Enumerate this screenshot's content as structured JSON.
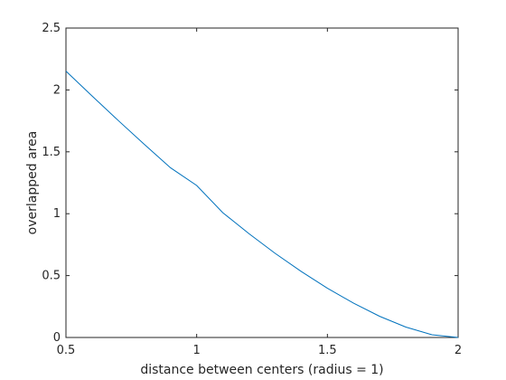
{
  "chart_data": {
    "type": "line",
    "title": "",
    "xlabel": "distance between centers (radius = 1)",
    "ylabel": "overlapped area",
    "xlim": [
      0.5,
      2
    ],
    "ylim": [
      0,
      2.5
    ],
    "xticks": [
      0.5,
      1,
      1.5,
      2
    ],
    "yticks": [
      0,
      0.5,
      1,
      1.5,
      2,
      2.5
    ],
    "xtick_labels": [
      "0.5",
      "1",
      "1.5",
      "2"
    ],
    "ytick_labels": [
      "0",
      "0.5",
      "1",
      "1.5",
      "2",
      "2.5"
    ],
    "grid": false,
    "box": true,
    "series": [
      {
        "color": "#0072BD",
        "x": [
          0.5,
          0.6,
          0.7,
          0.8,
          0.9,
          1.0,
          1.1,
          1.2,
          1.3,
          1.4,
          1.5,
          1.6,
          1.7,
          1.8,
          1.9,
          2.0
        ],
        "y": [
          2.152,
          1.951,
          1.753,
          1.56,
          1.371,
          1.228,
          1.008,
          0.839,
          0.68,
          0.533,
          0.398,
          0.277,
          0.171,
          0.084,
          0.022,
          0.0
        ]
      }
    ]
  }
}
